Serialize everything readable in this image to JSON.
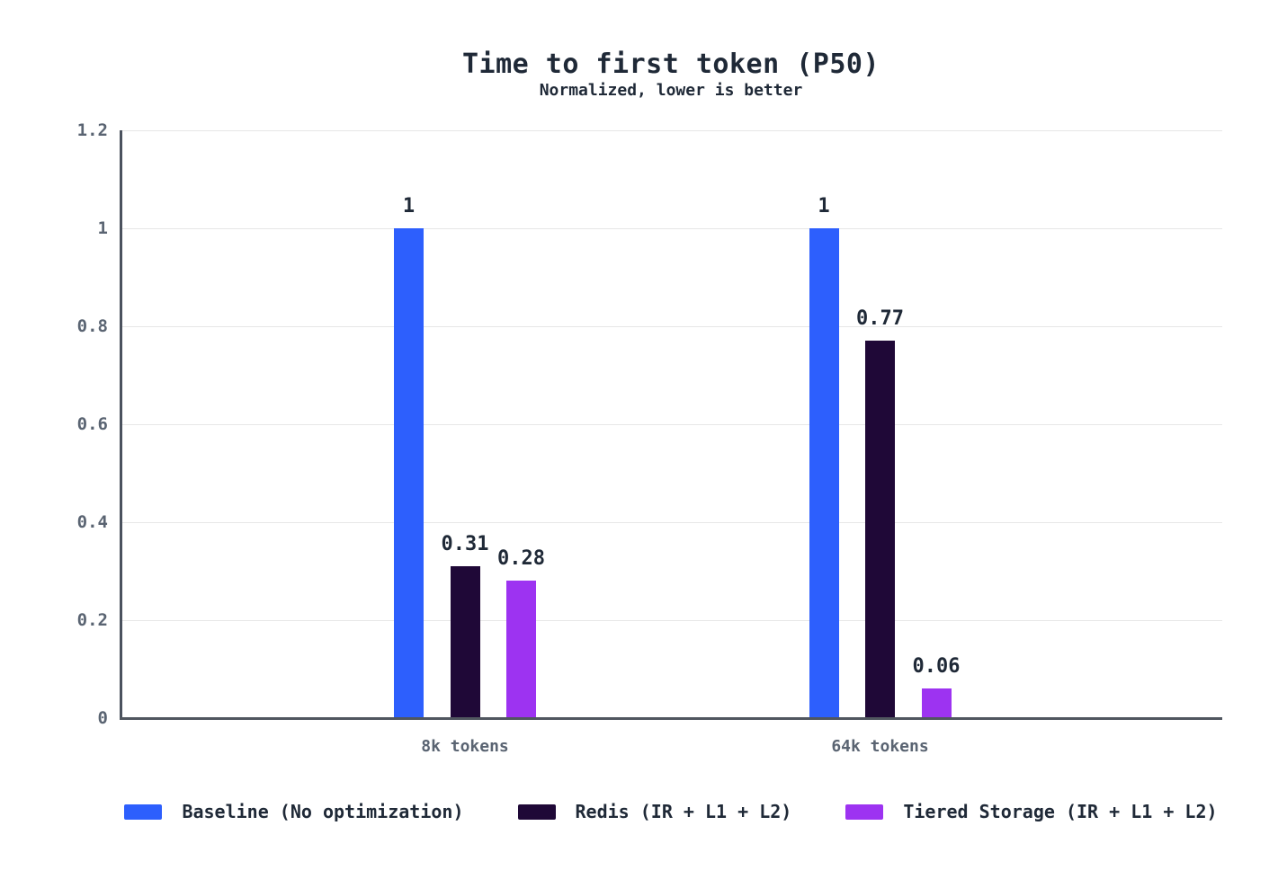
{
  "chart_data": {
    "type": "bar",
    "title": "Time to first token (P50)",
    "subtitle": "Normalized, lower is better",
    "categories": [
      "8k tokens",
      "64k tokens"
    ],
    "series": [
      {
        "name": "Baseline (No optimization)",
        "color": "#2d5ffd",
        "values": [
          1,
          1
        ],
        "value_labels": [
          "1",
          "1"
        ]
      },
      {
        "name": "Redis (IR + L1 + L2)",
        "color": "#1f0837",
        "values": [
          0.31,
          0.77
        ],
        "value_labels": [
          "0.31",
          "0.77"
        ]
      },
      {
        "name": "Tiered Storage (IR + L1 + L2)",
        "color": "#9d33f1",
        "values": [
          0.28,
          0.06
        ],
        "value_labels": [
          "0.28",
          "0.06"
        ]
      }
    ],
    "ylim": [
      0,
      1.2
    ],
    "yticks": [
      0,
      0.2,
      0.4,
      0.6,
      0.8,
      1,
      1.2
    ],
    "ytick_labels": [
      "0",
      "0.2",
      "0.4",
      "0.6",
      "0.8",
      "1",
      "1.2"
    ],
    "grid": true,
    "legend_position": "bottom",
    "xlabel": "",
    "ylabel": "",
    "colors": {
      "background": "#ffffff",
      "title_text": "#1f2937",
      "tick_text": "#5a6472",
      "axis_line": "#4b525e",
      "gridline": "#e7e7e7"
    }
  }
}
